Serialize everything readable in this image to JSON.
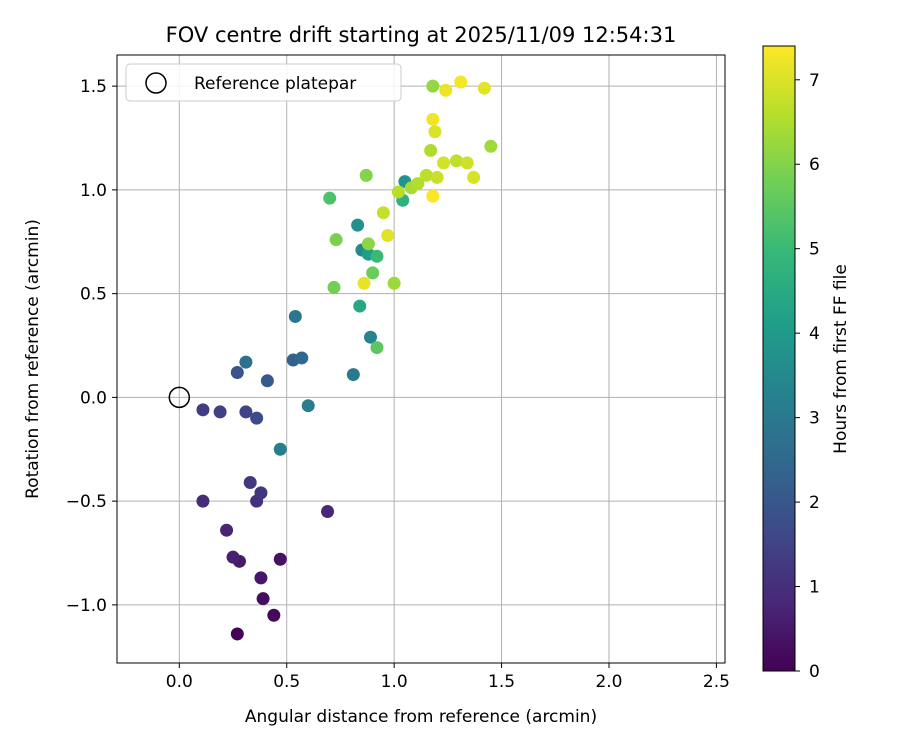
{
  "chart_data": {
    "type": "scatter",
    "title": "FOV centre drift starting at 2025/11/09 12:54:31",
    "xlabel": "Angular distance from reference (arcmin)",
    "ylabel": "Rotation from reference (arcmin)",
    "xlim": [
      -0.29,
      2.54
    ],
    "ylim": [
      -1.28,
      1.65
    ],
    "xticks": [
      0.0,
      0.5,
      1.0,
      1.5,
      2.0,
      2.5
    ],
    "xtick_labels": [
      "0.0",
      "0.5",
      "1.0",
      "1.5",
      "2.0",
      "2.5"
    ],
    "yticks": [
      -1.0,
      -0.5,
      0.0,
      0.5,
      1.0,
      1.5
    ],
    "ytick_labels": [
      "−1.0",
      "−0.5",
      "0.0",
      "0.5",
      "1.0",
      "1.5"
    ],
    "grid": true,
    "legend": {
      "position": "upper-left",
      "entries": [
        "Reference platepar"
      ]
    },
    "reference_point": {
      "x": 0.0,
      "y": 0.0,
      "marker": "open-circle"
    },
    "colorbar": {
      "label": "Hours from first FF file",
      "range": [
        0,
        7.4
      ],
      "ticks": [
        0,
        1,
        2,
        3,
        4,
        5,
        6,
        7
      ],
      "tick_labels": [
        "0",
        "1",
        "2",
        "3",
        "4",
        "5",
        "6",
        "7"
      ],
      "colormap": "viridis"
    },
    "colormap_stops": [
      "#440154",
      "#482878",
      "#3e4989",
      "#31688e",
      "#26828e",
      "#1f9e89",
      "#35b779",
      "#6ece58",
      "#b5de2b",
      "#fde725"
    ],
    "points": [
      {
        "x": 0.27,
        "y": -1.14,
        "c": 0.05
      },
      {
        "x": 0.44,
        "y": -1.05,
        "c": 0.15
      },
      {
        "x": 0.39,
        "y": -0.97,
        "c": 0.25
      },
      {
        "x": 0.47,
        "y": -0.78,
        "c": 0.35
      },
      {
        "x": 0.38,
        "y": -0.87,
        "c": 0.45
      },
      {
        "x": 0.28,
        "y": -0.79,
        "c": 0.55
      },
      {
        "x": 0.25,
        "y": -0.77,
        "c": 0.65
      },
      {
        "x": 0.22,
        "y": -0.64,
        "c": 0.75
      },
      {
        "x": 0.69,
        "y": -0.55,
        "c": 0.85
      },
      {
        "x": 0.11,
        "y": -0.5,
        "c": 0.95
      },
      {
        "x": 0.36,
        "y": -0.5,
        "c": 1.05
      },
      {
        "x": 0.38,
        "y": -0.46,
        "c": 1.15
      },
      {
        "x": 0.33,
        "y": -0.41,
        "c": 1.25
      },
      {
        "x": 0.11,
        "y": -0.06,
        "c": 1.35
      },
      {
        "x": 0.19,
        "y": -0.07,
        "c": 1.45
      },
      {
        "x": 0.31,
        "y": -0.07,
        "c": 1.55
      },
      {
        "x": 0.36,
        "y": -0.1,
        "c": 1.7
      },
      {
        "x": 0.27,
        "y": 0.12,
        "c": 1.9
      },
      {
        "x": 0.41,
        "y": 0.08,
        "c": 2.1
      },
      {
        "x": 0.53,
        "y": 0.18,
        "c": 2.3
      },
      {
        "x": 0.57,
        "y": 0.19,
        "c": 2.5
      },
      {
        "x": 0.31,
        "y": 0.17,
        "c": 2.75
      },
      {
        "x": 0.54,
        "y": 0.39,
        "c": 2.9
      },
      {
        "x": 0.81,
        "y": 0.11,
        "c": 3.0
      },
      {
        "x": 0.6,
        "y": -0.04,
        "c": 3.1
      },
      {
        "x": 0.47,
        "y": -0.25,
        "c": 3.2
      },
      {
        "x": 0.89,
        "y": 0.29,
        "c": 3.35
      },
      {
        "x": 0.85,
        "y": 0.71,
        "c": 3.5
      },
      {
        "x": 0.83,
        "y": 0.83,
        "c": 3.7
      },
      {
        "x": 1.05,
        "y": 1.04,
        "c": 3.85
      },
      {
        "x": 0.88,
        "y": 0.69,
        "c": 4.1
      },
      {
        "x": 0.84,
        "y": 0.44,
        "c": 4.4
      },
      {
        "x": 1.04,
        "y": 0.95,
        "c": 4.7
      },
      {
        "x": 0.92,
        "y": 0.68,
        "c": 5.0
      },
      {
        "x": 0.7,
        "y": 0.96,
        "c": 5.3
      },
      {
        "x": 0.92,
        "y": 0.24,
        "c": 5.5
      },
      {
        "x": 0.9,
        "y": 0.6,
        "c": 5.7
      },
      {
        "x": 0.72,
        "y": 0.53,
        "c": 5.8
      },
      {
        "x": 0.73,
        "y": 0.76,
        "c": 5.9
      },
      {
        "x": 0.87,
        "y": 1.07,
        "c": 6.0
      },
      {
        "x": 0.88,
        "y": 0.74,
        "c": 6.1
      },
      {
        "x": 1.18,
        "y": 1.5,
        "c": 6.2
      },
      {
        "x": 1.0,
        "y": 0.55,
        "c": 6.3
      },
      {
        "x": 1.45,
        "y": 1.21,
        "c": 6.35
      },
      {
        "x": 1.08,
        "y": 1.01,
        "c": 6.4
      },
      {
        "x": 1.17,
        "y": 1.19,
        "c": 6.5
      },
      {
        "x": 1.11,
        "y": 1.03,
        "c": 6.55
      },
      {
        "x": 1.02,
        "y": 0.99,
        "c": 6.6
      },
      {
        "x": 1.15,
        "y": 1.07,
        "c": 6.65
      },
      {
        "x": 1.29,
        "y": 1.14,
        "c": 6.7
      },
      {
        "x": 0.95,
        "y": 0.89,
        "c": 6.75
      },
      {
        "x": 1.2,
        "y": 1.06,
        "c": 6.8
      },
      {
        "x": 1.34,
        "y": 1.13,
        "c": 6.85
      },
      {
        "x": 1.23,
        "y": 1.13,
        "c": 6.9
      },
      {
        "x": 1.37,
        "y": 1.06,
        "c": 6.95
      },
      {
        "x": 1.19,
        "y": 1.28,
        "c": 7.0
      },
      {
        "x": 0.97,
        "y": 0.78,
        "c": 7.05
      },
      {
        "x": 1.42,
        "y": 1.49,
        "c": 7.1
      },
      {
        "x": 0.86,
        "y": 0.55,
        "c": 7.15
      },
      {
        "x": 1.24,
        "y": 1.48,
        "c": 7.2
      },
      {
        "x": 1.18,
        "y": 1.34,
        "c": 7.25
      },
      {
        "x": 1.31,
        "y": 1.52,
        "c": 7.3
      },
      {
        "x": 1.18,
        "y": 0.97,
        "c": 7.35
      }
    ]
  }
}
